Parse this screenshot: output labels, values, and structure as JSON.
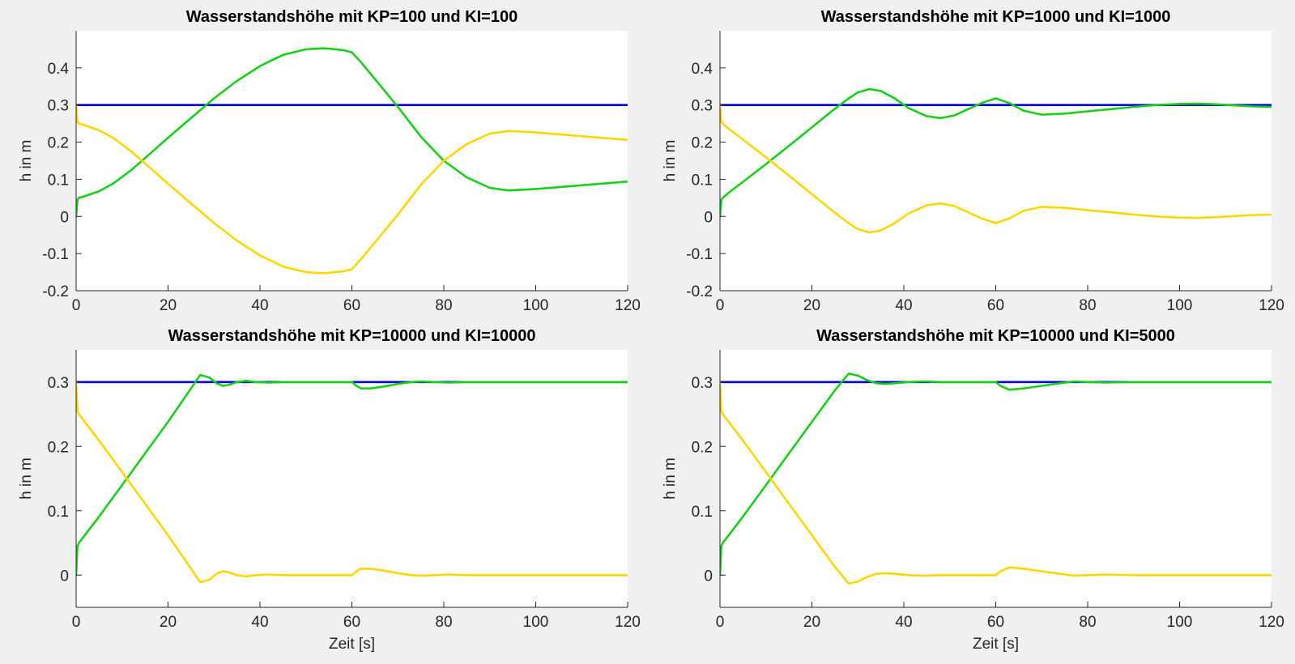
{
  "chart_data": [
    {
      "type": "line",
      "title": "Wasserstandshöhe mit KP=100 und KI=100",
      "xlabel": "",
      "ylabel": "h in m",
      "xlim": [
        0,
        120
      ],
      "ylim": [
        -0.2,
        0.5
      ],
      "xticks": [
        0,
        20,
        40,
        60,
        80,
        100,
        120
      ],
      "yticks": [
        -0.2,
        -0.1,
        0,
        0.1,
        0.2,
        0.3,
        0.4
      ],
      "ytick_labels": [
        "-0.2",
        "-0.1",
        "0",
        "0.1",
        "0.2",
        "0.3",
        "0.4"
      ],
      "grid": false,
      "series": [
        {
          "color": "#0000e6",
          "x": [
            0,
            120
          ],
          "y": [
            0.3,
            0.3
          ]
        },
        {
          "color": "#18d018",
          "x": [
            0,
            0.3,
            0.6,
            2,
            5,
            8,
            12,
            16,
            20,
            25,
            30,
            35,
            40,
            45,
            50,
            54,
            58,
            60,
            62,
            65,
            70,
            75,
            80,
            85,
            90,
            94,
            100,
            110,
            120
          ],
          "y": [
            0,
            0.045,
            0.05,
            0.055,
            0.068,
            0.088,
            0.125,
            0.168,
            0.212,
            0.265,
            0.318,
            0.365,
            0.405,
            0.435,
            0.45,
            0.453,
            0.448,
            0.442,
            0.415,
            0.37,
            0.295,
            0.215,
            0.15,
            0.105,
            0.077,
            0.07,
            0.074,
            0.084,
            0.094
          ]
        },
        {
          "color": "#ffd700",
          "x": [
            0,
            0.3,
            0.6,
            2,
            5,
            8,
            12,
            16,
            20,
            25,
            30,
            35,
            40,
            45,
            50,
            54,
            58,
            60,
            62,
            65,
            70,
            75,
            80,
            85,
            90,
            94,
            100,
            110,
            120
          ],
          "y": [
            0.3,
            0.255,
            0.25,
            0.245,
            0.232,
            0.212,
            0.175,
            0.132,
            0.088,
            0.035,
            -0.018,
            -0.065,
            -0.105,
            -0.135,
            -0.15,
            -0.153,
            -0.148,
            -0.142,
            -0.115,
            -0.07,
            0.005,
            0.085,
            0.15,
            0.195,
            0.223,
            0.23,
            0.226,
            0.216,
            0.206
          ]
        }
      ]
    },
    {
      "type": "line",
      "title": "Wasserstandshöhe mit KP=1000 und KI=1000",
      "xlabel": "",
      "ylabel": "h in m",
      "xlim": [
        0,
        120
      ],
      "ylim": [
        -0.2,
        0.5
      ],
      "xticks": [
        0,
        20,
        40,
        60,
        80,
        100,
        120
      ],
      "yticks": [
        -0.2,
        -0.1,
        0,
        0.1,
        0.2,
        0.3,
        0.4
      ],
      "ytick_labels": [
        "-0.2",
        "-0.1",
        "0",
        "0.1",
        "0.2",
        "0.3",
        "0.4"
      ],
      "grid": false,
      "series": [
        {
          "color": "#0000e6",
          "x": [
            0,
            120
          ],
          "y": [
            0.3,
            0.3
          ]
        },
        {
          "color": "#18d018",
          "x": [
            0,
            0.3,
            0.6,
            2,
            5,
            10,
            15,
            20,
            25,
            28,
            30,
            32.5,
            35,
            38,
            41,
            45,
            48,
            51,
            54,
            57,
            60,
            63,
            66,
            70,
            75,
            80,
            85,
            90,
            95,
            100,
            104,
            108,
            112,
            116,
            120
          ],
          "y": [
            0,
            0.045,
            0.05,
            0.065,
            0.093,
            0.141,
            0.19,
            0.24,
            0.29,
            0.318,
            0.334,
            0.343,
            0.338,
            0.318,
            0.292,
            0.27,
            0.265,
            0.272,
            0.289,
            0.306,
            0.318,
            0.305,
            0.285,
            0.274,
            0.277,
            0.283,
            0.289,
            0.295,
            0.3,
            0.303,
            0.304,
            0.302,
            0.299,
            0.296,
            0.295
          ]
        },
        {
          "color": "#ffd700",
          "x": [
            0,
            0.3,
            0.6,
            2,
            5,
            10,
            15,
            20,
            25,
            28,
            30,
            32.5,
            35,
            38,
            41,
            45,
            48,
            51,
            54,
            57,
            60,
            63,
            66,
            70,
            75,
            80,
            85,
            90,
            95,
            100,
            104,
            108,
            112,
            116,
            120
          ],
          "y": [
            0.3,
            0.255,
            0.25,
            0.235,
            0.207,
            0.159,
            0.11,
            0.06,
            0.01,
            -0.018,
            -0.034,
            -0.043,
            -0.038,
            -0.018,
            0.008,
            0.03,
            0.035,
            0.028,
            0.011,
            -0.006,
            -0.018,
            -0.005,
            0.015,
            0.026,
            0.023,
            0.017,
            0.011,
            0.005,
            0,
            -0.003,
            -0.004,
            -0.002,
            0.001,
            0.004,
            0.005
          ]
        }
      ]
    },
    {
      "type": "line",
      "title": "Wasserstandshöhe mit KP=10000 und KI=10000",
      "xlabel": "Zeit [s]",
      "ylabel": "h in m",
      "xlim": [
        0,
        120
      ],
      "ylim": [
        -0.05,
        0.35
      ],
      "xticks": [
        0,
        20,
        40,
        60,
        80,
        100,
        120
      ],
      "yticks": [
        0,
        0.1,
        0.2,
        0.3
      ],
      "ytick_labels": [
        "0",
        "0.1",
        "0.2",
        "0.3"
      ],
      "grid": false,
      "series": [
        {
          "color": "#0000e6",
          "x": [
            0,
            120
          ],
          "y": [
            0.3,
            0.3
          ]
        },
        {
          "color": "#18d018",
          "x": [
            0,
            0.3,
            0.6,
            2,
            5,
            10,
            15,
            20,
            25,
            27,
            29,
            30.5,
            32,
            33.5,
            35,
            37,
            39,
            42,
            45,
            50,
            55,
            60,
            61,
            62,
            64,
            67,
            70,
            73,
            75,
            78,
            81,
            85,
            90,
            100,
            110,
            120
          ],
          "y": [
            0,
            0.045,
            0.05,
            0.063,
            0.091,
            0.14,
            0.189,
            0.238,
            0.29,
            0.311,
            0.307,
            0.298,
            0.294,
            0.296,
            0.3,
            0.302,
            0.3,
            0.299,
            0.3,
            0.3,
            0.3,
            0.3,
            0.294,
            0.29,
            0.29,
            0.293,
            0.297,
            0.3,
            0.301,
            0.3,
            0.299,
            0.3,
            0.3,
            0.3,
            0.3,
            0.3
          ]
        },
        {
          "color": "#ffd700",
          "x": [
            0,
            0.3,
            0.6,
            2,
            5,
            10,
            15,
            20,
            25,
            27,
            29,
            30.5,
            32,
            33.5,
            35,
            37,
            39,
            42,
            45,
            50,
            55,
            60,
            61,
            62,
            64,
            67,
            70,
            73,
            75,
            78,
            81,
            85,
            90,
            100,
            110,
            120
          ],
          "y": [
            0.3,
            0.255,
            0.25,
            0.237,
            0.209,
            0.16,
            0.111,
            0.062,
            0.01,
            -0.011,
            -0.007,
            0.002,
            0.006,
            0.004,
            0,
            -0.002,
            0,
            0.001,
            0,
            0,
            0,
            0,
            0.006,
            0.01,
            0.01,
            0.007,
            0.003,
            0,
            -0.001,
            0,
            0.001,
            0,
            0,
            0,
            0,
            0
          ]
        }
      ]
    },
    {
      "type": "line",
      "title": "Wasserstandshöhe mit KP=10000 und KI=5000",
      "xlabel": "Zeit [s]",
      "ylabel": "h in m",
      "xlim": [
        0,
        120
      ],
      "ylim": [
        -0.05,
        0.35
      ],
      "xticks": [
        0,
        20,
        40,
        60,
        80,
        100,
        120
      ],
      "yticks": [
        0,
        0.1,
        0.2,
        0.3
      ],
      "ytick_labels": [
        "0",
        "0.1",
        "0.2",
        "0.3"
      ],
      "grid": false,
      "series": [
        {
          "color": "#0000e6",
          "x": [
            0,
            120
          ],
          "y": [
            0.3,
            0.3
          ]
        },
        {
          "color": "#18d018",
          "x": [
            0,
            0.3,
            0.6,
            2,
            5,
            10,
            15,
            20,
            25,
            28,
            30,
            32,
            34,
            36,
            38,
            41,
            44,
            48,
            52,
            56,
            60,
            61,
            63,
            66,
            70,
            74,
            77,
            80,
            84,
            90,
            100,
            110,
            120
          ],
          "y": [
            0,
            0.045,
            0.05,
            0.063,
            0.091,
            0.14,
            0.189,
            0.238,
            0.287,
            0.313,
            0.31,
            0.303,
            0.298,
            0.297,
            0.298,
            0.3,
            0.301,
            0.3,
            0.3,
            0.3,
            0.3,
            0.294,
            0.288,
            0.29,
            0.294,
            0.298,
            0.301,
            0.3,
            0.299,
            0.3,
            0.3,
            0.3,
            0.3
          ]
        },
        {
          "color": "#ffd700",
          "x": [
            0,
            0.3,
            0.6,
            2,
            5,
            10,
            15,
            20,
            25,
            28,
            30,
            32,
            34,
            36,
            38,
            41,
            44,
            48,
            52,
            56,
            60,
            61,
            63,
            66,
            70,
            74,
            77,
            80,
            84,
            90,
            100,
            110,
            120
          ],
          "y": [
            0.3,
            0.255,
            0.25,
            0.237,
            0.209,
            0.16,
            0.111,
            0.062,
            0.013,
            -0.013,
            -0.01,
            -0.003,
            0.002,
            0.003,
            0.002,
            0,
            -0.001,
            0,
            0,
            0,
            0,
            0.006,
            0.012,
            0.01,
            0.006,
            0.002,
            -0.001,
            0,
            0.001,
            0,
            0,
            0,
            0
          ]
        }
      ]
    }
  ]
}
